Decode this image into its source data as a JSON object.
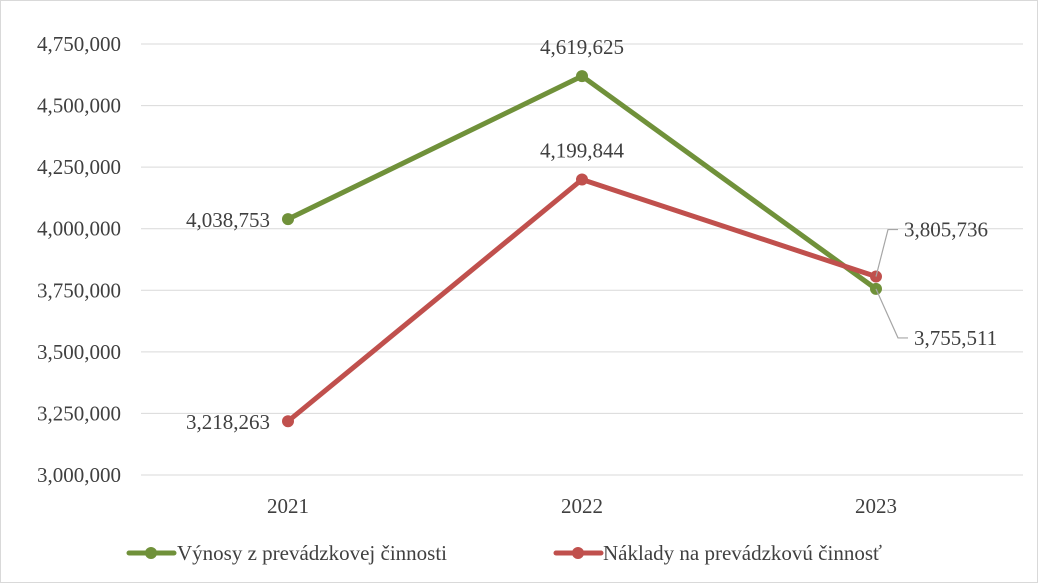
{
  "chart_data": {
    "type": "line",
    "categories": [
      "2021",
      "2022",
      "2023"
    ],
    "series": [
      {
        "name": "Výnosy z prevádzkovej činnosti",
        "values": [
          4038753,
          4619625,
          3755511
        ],
        "color": "#70913a",
        "labels": [
          "4,038,753",
          "4,619,625",
          "3,755,511"
        ]
      },
      {
        "name": "Náklady na prevádzkovú činnosť",
        "values": [
          3218263,
          4199844,
          3805736
        ],
        "color": "#c0504d",
        "labels": [
          "3,218,263",
          "4,199,844",
          "3,805,736"
        ]
      }
    ],
    "title": "",
    "xlabel": "",
    "ylabel": "",
    "ylim": [
      3000000,
      4750000
    ],
    "yticks": [
      3000000,
      3250000,
      3500000,
      3750000,
      4000000,
      4250000,
      4500000,
      4750000
    ],
    "ytick_labels": [
      "3,000,000",
      "3,250,000",
      "3,500,000",
      "3,750,000",
      "4,000,000",
      "4,250,000",
      "4,500,000",
      "4,750,000"
    ],
    "grid": true,
    "legend_position": "bottom",
    "gridline_color": "#d9d9d9"
  }
}
